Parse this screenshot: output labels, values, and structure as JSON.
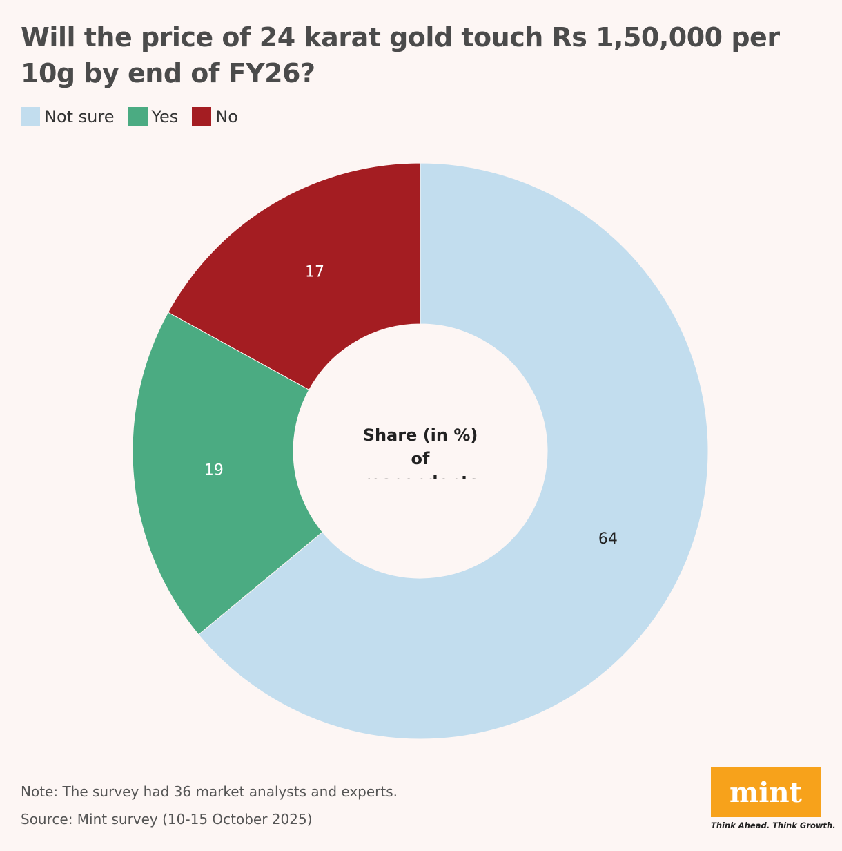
{
  "chart_data": {
    "type": "donut",
    "title": "Will the price of 24 karat gold touch Rs 1,50,000 per 10g by end of FY26?",
    "center_label": "Share (in %) of respondents",
    "categories": [
      "Not sure",
      "Yes",
      "No"
    ],
    "values": [
      64,
      19,
      17
    ],
    "colors": [
      "#c2ddee",
      "#4bab82",
      "#a41d22"
    ],
    "legend": "top-left",
    "note": "Note: The survey had 36 market analysts and experts.",
    "source": "Source: Mint survey (10-15 October 2025)"
  },
  "branding": {
    "logo": "mint",
    "tagline": "Think Ahead. Think Growth."
  }
}
